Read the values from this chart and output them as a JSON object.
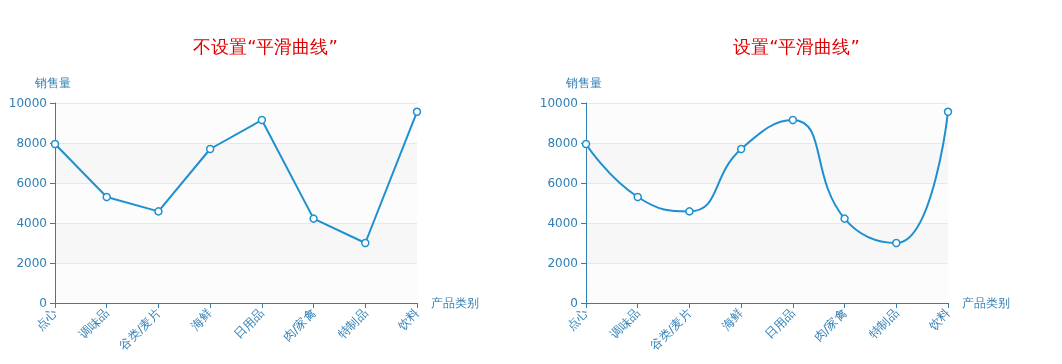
{
  "chart_data": [
    {
      "type": "line",
      "title": "不设置“平滑曲线”",
      "xlabel": "产品类别",
      "ylabel": "销售量",
      "categories": [
        "点心",
        "调味品",
        "谷类/麦片",
        "海鲜",
        "日用品",
        "肉/家禽",
        "特制品",
        "饮料"
      ],
      "series": [
        {
          "color": "#1e90d0",
          "values": [
            7950,
            5300,
            4580,
            7700,
            9150,
            4220,
            3000,
            9560
          ]
        }
      ],
      "ylim": [
        0,
        10000
      ],
      "yticks": [
        0,
        2000,
        4000,
        6000,
        8000,
        10000
      ],
      "grid": "y",
      "marker": "circle",
      "line_style": "solid"
    },
    {
      "type": "line",
      "title": "设置“平滑曲线”",
      "xlabel": "产品类别",
      "ylabel": "销售量",
      "categories": [
        "点心",
        "调味品",
        "谷类/麦片",
        "海鲜",
        "日用品",
        "肉/家禽",
        "特制品",
        "饮料"
      ],
      "series": [
        {
          "color": "#1e90d0",
          "values": [
            7950,
            5300,
            4580,
            7700,
            9150,
            4220,
            3000,
            9560
          ]
        }
      ],
      "ylim": [
        0,
        10000
      ],
      "yticks": [
        0,
        2000,
        4000,
        6000,
        8000,
        10000
      ],
      "grid": "y",
      "marker": "circle",
      "line_style": "solid"
    }
  ]
}
